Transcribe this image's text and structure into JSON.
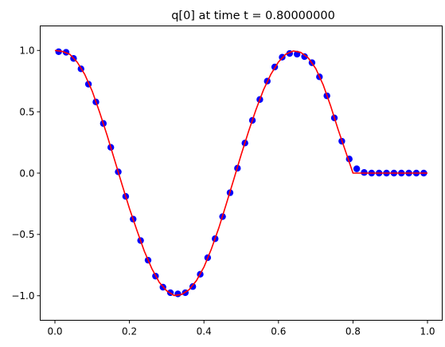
{
  "chart_data": {
    "type": "scatter",
    "title": "q[0] at time t =     0.80000000",
    "xlabel": "",
    "ylabel": "",
    "xlim": [
      -0.0395,
      1.0395
    ],
    "ylim": [
      -1.2,
      1.2
    ],
    "x_ticks": [
      0.0,
      0.2,
      0.4,
      0.6,
      0.8,
      1.0
    ],
    "x_tick_labels": [
      "0.0",
      "0.2",
      "0.4",
      "0.6",
      "0.8",
      "1.0"
    ],
    "y_ticks": [
      -1.0,
      -0.5,
      0.0,
      0.5,
      1.0
    ],
    "y_tick_labels": [
      "−1.0",
      "−0.5",
      "0.0",
      "0.5",
      "1.0"
    ],
    "grid": false,
    "series": [
      {
        "kind": "markers",
        "color": "#0000ff",
        "x": [
          0.01,
          0.03,
          0.05,
          0.07,
          0.09,
          0.11,
          0.13,
          0.15,
          0.17,
          0.19,
          0.21,
          0.23,
          0.25,
          0.27,
          0.29,
          0.31,
          0.33,
          0.35,
          0.37,
          0.39,
          0.41,
          0.43,
          0.45,
          0.47,
          0.49,
          0.51,
          0.53,
          0.55,
          0.57,
          0.59,
          0.61,
          0.63,
          0.65,
          0.67,
          0.69,
          0.71,
          0.73,
          0.75,
          0.77,
          0.79,
          0.81,
          0.83,
          0.85,
          0.87,
          0.89,
          0.91,
          0.93,
          0.95,
          0.97,
          0.99
        ],
        "y": [
          0.99,
          0.985,
          0.935,
          0.85,
          0.725,
          0.58,
          0.405,
          0.21,
          0.01,
          -0.19,
          -0.375,
          -0.55,
          -0.71,
          -0.84,
          -0.93,
          -0.975,
          -0.985,
          -0.975,
          -0.925,
          -0.825,
          -0.69,
          -0.535,
          -0.355,
          -0.16,
          0.04,
          0.245,
          0.43,
          0.6,
          0.75,
          0.865,
          0.945,
          0.975,
          0.97,
          0.95,
          0.9,
          0.785,
          0.63,
          0.45,
          0.26,
          0.115,
          0.035,
          0.005,
          0.0,
          0.0,
          0.0,
          0.0,
          0.0,
          0.0,
          0.0,
          0.0
        ]
      },
      {
        "kind": "line",
        "color": "#ff0000",
        "x": [
          0.0,
          0.02,
          0.04,
          0.06,
          0.08,
          0.1,
          0.12,
          0.14,
          0.16,
          0.18,
          0.2,
          0.22,
          0.24,
          0.26,
          0.28,
          0.3,
          0.32,
          0.34,
          0.36,
          0.38,
          0.4,
          0.42,
          0.44,
          0.46,
          0.48,
          0.5,
          0.52,
          0.54,
          0.56,
          0.58,
          0.6,
          0.62,
          0.64,
          0.66,
          0.68,
          0.7,
          0.72,
          0.74,
          0.76,
          0.78,
          0.8,
          0.82,
          0.84,
          0.86,
          0.88,
          0.9,
          0.92,
          0.94,
          0.96,
          0.98,
          1.0
        ],
        "y": [
          1.0,
          0.992,
          0.969,
          0.904,
          0.805,
          0.669,
          0.496,
          0.309,
          0.109,
          -0.092,
          -0.288,
          -0.466,
          -0.637,
          -0.778,
          -0.89,
          -0.96,
          -0.998,
          -0.99,
          -0.951,
          -0.876,
          -0.766,
          -0.618,
          -0.446,
          -0.251,
          -0.052,
          0.151,
          0.342,
          0.52,
          0.68,
          0.808,
          0.906,
          0.97,
          0.996,
          0.984,
          0.939,
          0.853,
          0.72,
          0.548,
          0.356,
          0.178,
          0.0,
          0.0,
          0.0,
          0.0,
          0.0,
          0.0,
          0.0,
          0.0,
          0.0,
          0.0,
          0.0
        ]
      }
    ]
  }
}
